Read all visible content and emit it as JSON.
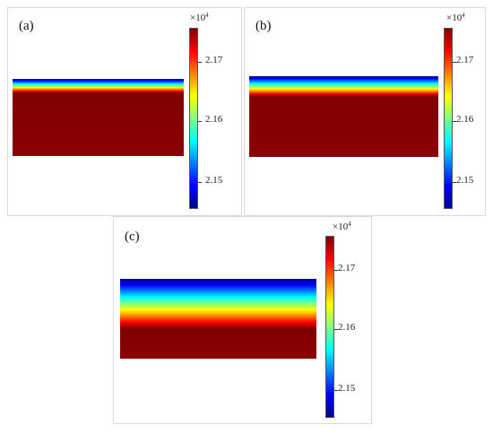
{
  "panels": [
    {
      "id": "a",
      "label": "(a)",
      "gradient_fraction": 0.18,
      "colorbar": {
        "multiplier_base": "×10",
        "multiplier_exp": "4",
        "ticks": [
          {
            "label": "2.17",
            "value": 2.17
          },
          {
            "label": "2.16",
            "value": 2.16
          },
          {
            "label": "2.15",
            "value": 2.15
          }
        ]
      }
    },
    {
      "id": "b",
      "label": "(b)",
      "gradient_fraction": 0.25,
      "colorbar": {
        "multiplier_base": "×10",
        "multiplier_exp": "4",
        "ticks": [
          {
            "label": "2.17",
            "value": 2.17
          },
          {
            "label": "2.16",
            "value": 2.16
          },
          {
            "label": "2.15",
            "value": 2.15
          }
        ]
      }
    },
    {
      "id": "c",
      "label": "(c)",
      "gradient_fraction": 0.62,
      "colorbar": {
        "multiplier_base": "×10",
        "multiplier_exp": "4",
        "ticks": [
          {
            "label": "2.17",
            "value": 2.17
          },
          {
            "label": "2.16",
            "value": 2.16
          },
          {
            "label": "2.15",
            "value": 2.15
          }
        ]
      }
    }
  ],
  "colors": {
    "jet_gradient": [
      "#00008f",
      "#0000ff",
      "#0080ff",
      "#00ffff",
      "#80ff80",
      "#ffff00",
      "#ff8000",
      "#ff0000",
      "#800000"
    ],
    "saturated": "#8b0000",
    "border": "#d9d9d9"
  }
}
